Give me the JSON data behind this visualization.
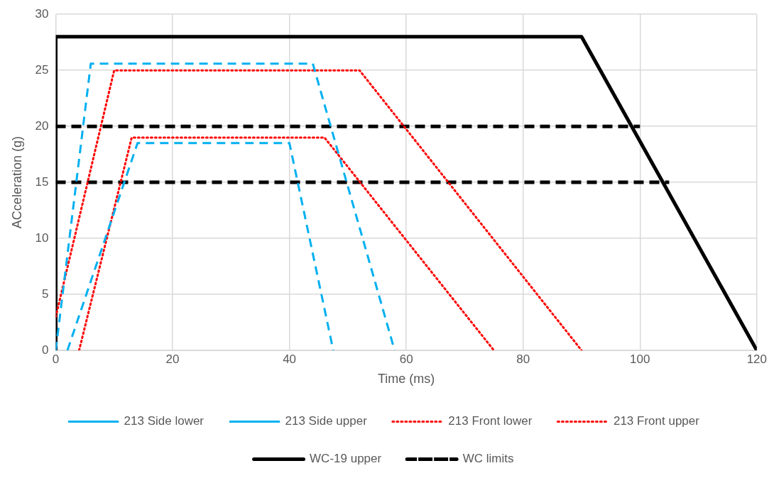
{
  "chart_data": {
    "type": "line",
    "xlabel": "Time (ms)",
    "ylabel": "ACceleration (g)",
    "xlim": [
      0,
      120
    ],
    "xticks": [
      0,
      20,
      40,
      60,
      80,
      100,
      120
    ],
    "ylim": [
      0,
      30
    ],
    "yticks": [
      0,
      5,
      10,
      15,
      20,
      25,
      30
    ],
    "grid": true,
    "legend": "bottom",
    "marker": "none",
    "series": [
      {
        "name": "213 Side lower",
        "color": "#00b0f0",
        "line_style": "dashed",
        "x": [
          2,
          14,
          40,
          47.5
        ],
        "values": [
          0,
          18.5,
          18.5,
          0
        ]
      },
      {
        "name": "213 Side upper",
        "color": "#00b0f0",
        "line_style": "dashed",
        "x": [
          0,
          6,
          44,
          58
        ],
        "values": [
          0,
          25.6,
          25.6,
          0
        ]
      },
      {
        "name": "213 Front lower",
        "color": "#ff0000",
        "line_style": "dotted",
        "x": [
          4,
          13,
          46,
          75
        ],
        "values": [
          0,
          19,
          19,
          0
        ]
      },
      {
        "name": "213 Front upper",
        "color": "#ff0000",
        "line_style": "dotted",
        "x": [
          0,
          10,
          52,
          90
        ],
        "values": [
          3,
          25,
          25,
          0
        ]
      },
      {
        "name": "WC-19 upper",
        "color": "#000000",
        "line_style": "solid",
        "x": [
          0,
          0,
          90,
          120
        ],
        "values": [
          0,
          28,
          28,
          0
        ]
      },
      {
        "name": "WC limits",
        "color": "#000000",
        "line_style": "dashed",
        "x": [
          0,
          100
        ],
        "values": [
          20,
          20
        ]
      },
      {
        "color": "#000000",
        "line_style": "dashed",
        "x": [
          0,
          105
        ],
        "values": [
          15,
          15
        ]
      }
    ]
  }
}
